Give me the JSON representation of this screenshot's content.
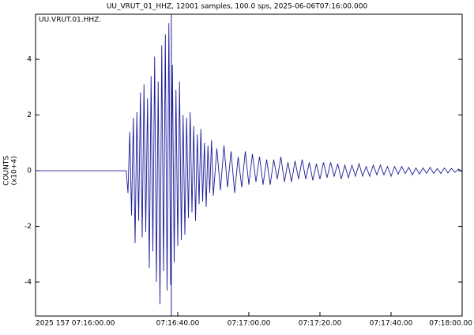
{
  "chart_data": {
    "type": "line",
    "title": "UU_VRUT_01_HHZ, 12001 samples, 100.0 sps, 2025-06-06T07:16:00.000",
    "annotation": "UU.VRUT.01.HHZ.",
    "ylabel": [
      "COUNTS",
      "(x10+4)"
    ],
    "xlim": [
      0,
      120
    ],
    "ylim": [
      -5.22,
      5.62
    ],
    "xticks": [
      {
        "value": 0,
        "label": "2025 157 07:16:00.00"
      },
      {
        "value": 40,
        "label": "07:16:40.00"
      },
      {
        "value": 60,
        "label": "07:17:00.00"
      },
      {
        "value": 80,
        "label": "07:17:20.00"
      },
      {
        "value": 100,
        "label": "07:17:40.00"
      },
      {
        "value": 120,
        "label": "07:18:00.00"
      }
    ],
    "yticks": [
      -4,
      -2,
      0,
      2,
      4
    ],
    "marker_x": 38.2,
    "color": "#1c1c9a",
    "x": [
      0,
      25.5,
      26,
      26.5,
      27,
      27.5,
      28,
      28.5,
      29,
      29.5,
      30,
      30.5,
      31,
      31.5,
      32,
      32.5,
      33,
      33.5,
      34,
      34.5,
      35,
      35.5,
      36,
      36.5,
      37,
      37.5,
      38,
      38.5,
      39,
      39.5,
      40,
      40.5,
      41,
      41.5,
      42,
      42.5,
      43,
      43.5,
      44,
      44.5,
      45,
      45.5,
      46,
      46.5,
      47,
      47.5,
      48,
      48.5,
      49,
      49.5,
      50,
      51,
      52,
      53,
      54,
      55,
      56,
      57,
      58,
      59,
      60,
      61,
      62,
      63,
      64,
      65,
      66,
      67,
      68,
      69,
      70,
      71,
      72,
      73,
      74,
      75,
      76,
      77,
      78,
      79,
      80,
      81,
      82,
      83,
      84,
      85,
      86,
      87,
      88,
      89,
      90,
      91,
      92,
      93,
      94,
      95,
      96,
      97,
      98,
      99,
      100,
      101,
      102,
      103,
      104,
      105,
      106,
      107,
      108,
      109,
      110,
      111,
      112,
      113,
      114,
      115,
      116,
      117,
      118,
      119,
      120
    ],
    "values": [
      0,
      0,
      -0.8,
      1.4,
      -1.6,
      1.9,
      -2.6,
      2.1,
      -1.8,
      2.8,
      -2.4,
      3.1,
      -2.2,
      2.6,
      -3.5,
      3.4,
      -2.9,
      4.1,
      -4.0,
      3.2,
      -4.8,
      4.5,
      -3.6,
      4.9,
      -4.3,
      5.3,
      -4.1,
      3.8,
      -3.3,
      2.9,
      -2.7,
      3.2,
      -2.5,
      2.0,
      -2.3,
      1.9,
      -1.7,
      2.1,
      -1.5,
      1.6,
      -1.8,
      1.3,
      -1.2,
      1.5,
      -1.1,
      1.0,
      -1.3,
      0.9,
      -0.8,
      1.1,
      -0.9,
      0.8,
      -0.7,
      0.9,
      -0.6,
      0.7,
      -0.8,
      0.5,
      -0.6,
      0.7,
      -0.5,
      0.6,
      -0.4,
      0.5,
      -0.5,
      0.4,
      -0.5,
      0.4,
      -0.3,
      0.5,
      -0.4,
      0.3,
      -0.4,
      0.35,
      -0.3,
      0.4,
      -0.3,
      0.3,
      -0.35,
      0.25,
      -0.3,
      0.3,
      -0.25,
      0.3,
      -0.2,
      0.25,
      -0.3,
      0.2,
      -0.25,
      0.2,
      -0.2,
      0.25,
      -0.2,
      0.15,
      -0.2,
      0.2,
      -0.15,
      0.2,
      -0.15,
      0.15,
      -0.2,
      0.15,
      -0.12,
      0.15,
      -0.1,
      0.12,
      -0.15,
      0.1,
      -0.12,
      0.1,
      -0.1,
      0.12,
      -0.1,
      0.08,
      -0.1,
      0.1,
      -0.08,
      0.08,
      -0.06,
      0.06,
      -0.05
    ]
  }
}
